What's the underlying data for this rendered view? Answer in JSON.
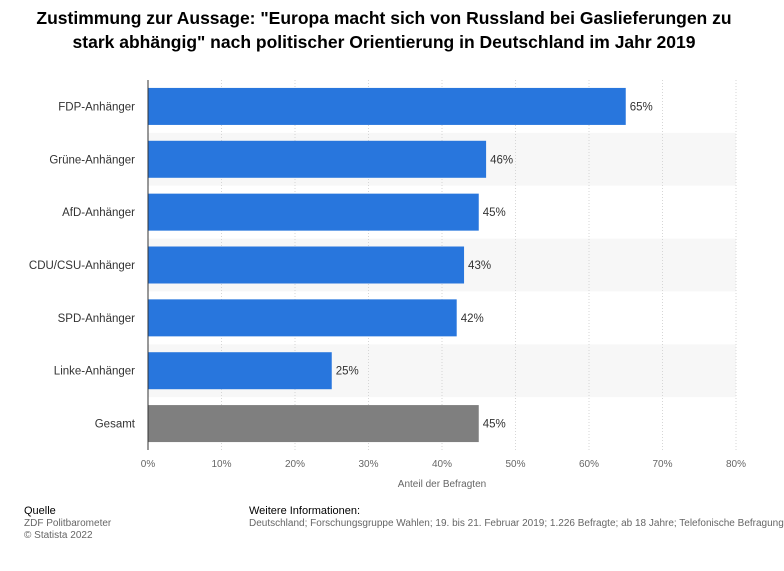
{
  "chart_data": {
    "type": "bar",
    "orientation": "horizontal",
    "title": "Zustimmung zur Aussage: \"Europa macht sich von Russland bei Gaslieferungen zu stark abhängig\" nach politischer Orientierung in Deutschland im Jahr 2019",
    "categories": [
      "FDP-Anhänger",
      "Grüne-Anhänger",
      "AfD-Anhänger",
      "CDU/CSU-Anhänger",
      "SPD-Anhänger",
      "Linke-Anhänger",
      "Gesamt"
    ],
    "values": [
      65,
      46,
      45,
      43,
      42,
      25,
      45
    ],
    "value_labels": [
      "65%",
      "46%",
      "45%",
      "43%",
      "42%",
      "25%",
      "45%"
    ],
    "bar_colors": [
      "#2876dd",
      "#2876dd",
      "#2876dd",
      "#2876dd",
      "#2876dd",
      "#2876dd",
      "#7f7f7f"
    ],
    "xlabel": "Anteil der Befragten",
    "ylabel": "",
    "xlim": [
      0,
      80
    ],
    "xticks": [
      "0%",
      "10%",
      "20%",
      "30%",
      "40%",
      "50%",
      "60%",
      "70%",
      "80%"
    ],
    "grid": true
  },
  "footer": {
    "source_heading": "Quelle",
    "source_line1": "ZDF Politbarometer",
    "source_line2": "© Statista 2022",
    "info_heading": "Weitere Informationen:",
    "info_text": "Deutschland; Forschungsgruppe Wahlen; 19. bis 21. Februar 2019; 1.226 Befragte; ab 18 Jahre; Telefonische Befragung"
  }
}
